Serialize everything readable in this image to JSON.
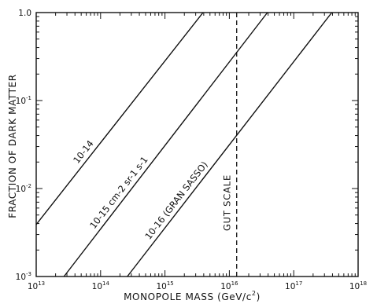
{
  "chart_data": {
    "type": "line",
    "title": "",
    "xlabel": "MONOPOLE MASS (GeV/c²)",
    "xlabel_parts": [
      "MONOPOLE  MASS (GeV/c",
      "2",
      ")"
    ],
    "ylabel": "FRACTION OF DARK MATTER",
    "xscale": "log",
    "yscale": "log",
    "xlim": [
      10000000000000.0,
      1e+18
    ],
    "ylim": [
      0.001,
      1.0
    ],
    "x_ticks": [
      {
        "value": 10000000000000.0,
        "base": "10",
        "exp": "13"
      },
      {
        "value": 100000000000000.0,
        "base": "10",
        "exp": "14"
      },
      {
        "value": 1000000000000000.0,
        "base": "10",
        "exp": "15"
      },
      {
        "value": 1e+16,
        "base": "10",
        "exp": "16"
      },
      {
        "value": 1e+17,
        "base": "10",
        "exp": "17"
      },
      {
        "value": 1e+18,
        "base": "10",
        "exp": "18"
      }
    ],
    "y_ticks": [
      {
        "value": 0.001,
        "base": "10",
        "exp": "-3"
      },
      {
        "value": 0.01,
        "base": "10",
        "exp": "-2"
      },
      {
        "value": 0.1,
        "base": "10",
        "exp": "-1"
      },
      {
        "value": 1.0,
        "text": "1.0"
      }
    ],
    "grid": false,
    "series": [
      {
        "label": "10-14",
        "x": [
          10000000000000.0,
          3900000000000000.0
        ],
        "y": [
          0.0039,
          1.0
        ]
      },
      {
        "label": "10-15 cm-2 sr-1 s-1",
        "x": [
          27000000000000.0,
          3.9e+16
        ],
        "y": [
          0.001,
          1.0
        ]
      },
      {
        "label": "10-16 (GRAN SASSO)",
        "x": [
          260000000000000.0,
          3.9e+17
        ],
        "y": [
          0.001,
          1.0
        ]
      }
    ],
    "vlines": [
      {
        "x": 1.3e+16,
        "style": "dashed",
        "label": "GUT SCALE"
      }
    ]
  }
}
